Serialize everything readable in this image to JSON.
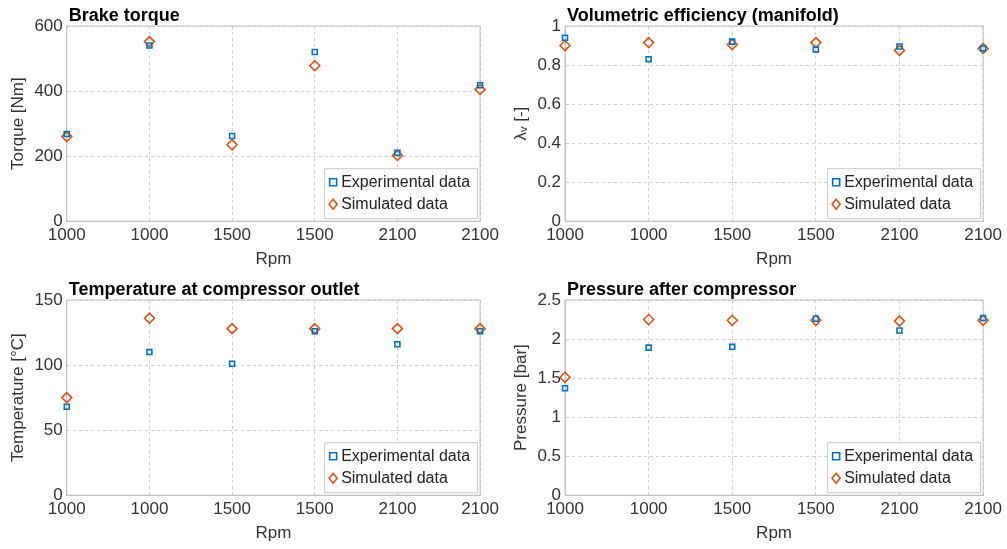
{
  "chart_data": [
    {
      "type": "scatter",
      "title": "Brake torque",
      "xlabel": "Rpm",
      "ylabel": "Torque [Nm]",
      "categories": [
        "1000",
        "1000",
        "1500",
        "1500",
        "2100",
        "2100"
      ],
      "ylim": [
        0,
        600
      ],
      "yticks": [
        0,
        200,
        400,
        600
      ],
      "grid": true,
      "legend": "bottom right",
      "series": [
        {
          "name": "Experimental data",
          "color": "#0072bd",
          "marker": "square",
          "values": [
            268,
            540,
            262,
            520,
            210,
            418
          ]
        },
        {
          "name": "Simulated data",
          "color": "#d95319",
          "marker": "diamond",
          "values": [
            260,
            552,
            235,
            478,
            202,
            405
          ]
        }
      ]
    },
    {
      "type": "scatter",
      "title": "Volumetric efficiency (manifold)",
      "xlabel": "Rpm",
      "ylabel": "λᵥ [-]",
      "categories": [
        "1000",
        "1000",
        "1500",
        "1500",
        "2100",
        "2100"
      ],
      "ylim": [
        0,
        1
      ],
      "yticks": [
        0,
        0.2,
        0.4,
        0.6,
        0.8,
        1
      ],
      "grid": true,
      "legend": "bottom right",
      "series": [
        {
          "name": "Experimental data",
          "color": "#0072bd",
          "marker": "square",
          "values": [
            0.94,
            0.83,
            0.92,
            0.88,
            0.895,
            0.885
          ]
        },
        {
          "name": "Simulated data",
          "color": "#d95319",
          "marker": "diamond",
          "values": [
            0.9,
            0.915,
            0.905,
            0.915,
            0.875,
            0.885
          ]
        }
      ]
    },
    {
      "type": "scatter",
      "title": "Temperature at compressor outlet",
      "xlabel": "Rpm",
      "ylabel": "Temperature [°C]",
      "categories": [
        "1000",
        "1000",
        "1500",
        "1500",
        "2100",
        "2100"
      ],
      "ylim": [
        0,
        150
      ],
      "yticks": [
        0,
        50,
        100,
        150
      ],
      "grid": true,
      "legend": "bottom right",
      "series": [
        {
          "name": "Experimental data",
          "color": "#0072bd",
          "marker": "square",
          "values": [
            68,
            110,
            101,
            126,
            116,
            126
          ]
        },
        {
          "name": "Simulated data",
          "color": "#d95319",
          "marker": "diamond",
          "values": [
            75,
            136,
            128,
            128,
            128,
            128
          ]
        }
      ]
    },
    {
      "type": "scatter",
      "title": "Pressure after compressor",
      "xlabel": "Rpm",
      "ylabel": "Pressure [bar]",
      "categories": [
        "1000",
        "1000",
        "1500",
        "1500",
        "2100",
        "2100"
      ],
      "ylim": [
        0,
        2.5
      ],
      "yticks": [
        0,
        0.5,
        1,
        1.5,
        2,
        2.5
      ],
      "grid": true,
      "legend": "bottom right",
      "series": [
        {
          "name": "Experimental data",
          "color": "#0072bd",
          "marker": "square",
          "values": [
            1.37,
            1.89,
            1.9,
            2.26,
            2.11,
            2.27
          ]
        },
        {
          "name": "Simulated data",
          "color": "#d95319",
          "marker": "diamond",
          "values": [
            1.51,
            2.25,
            2.24,
            2.24,
            2.23,
            2.24
          ]
        }
      ]
    }
  ]
}
